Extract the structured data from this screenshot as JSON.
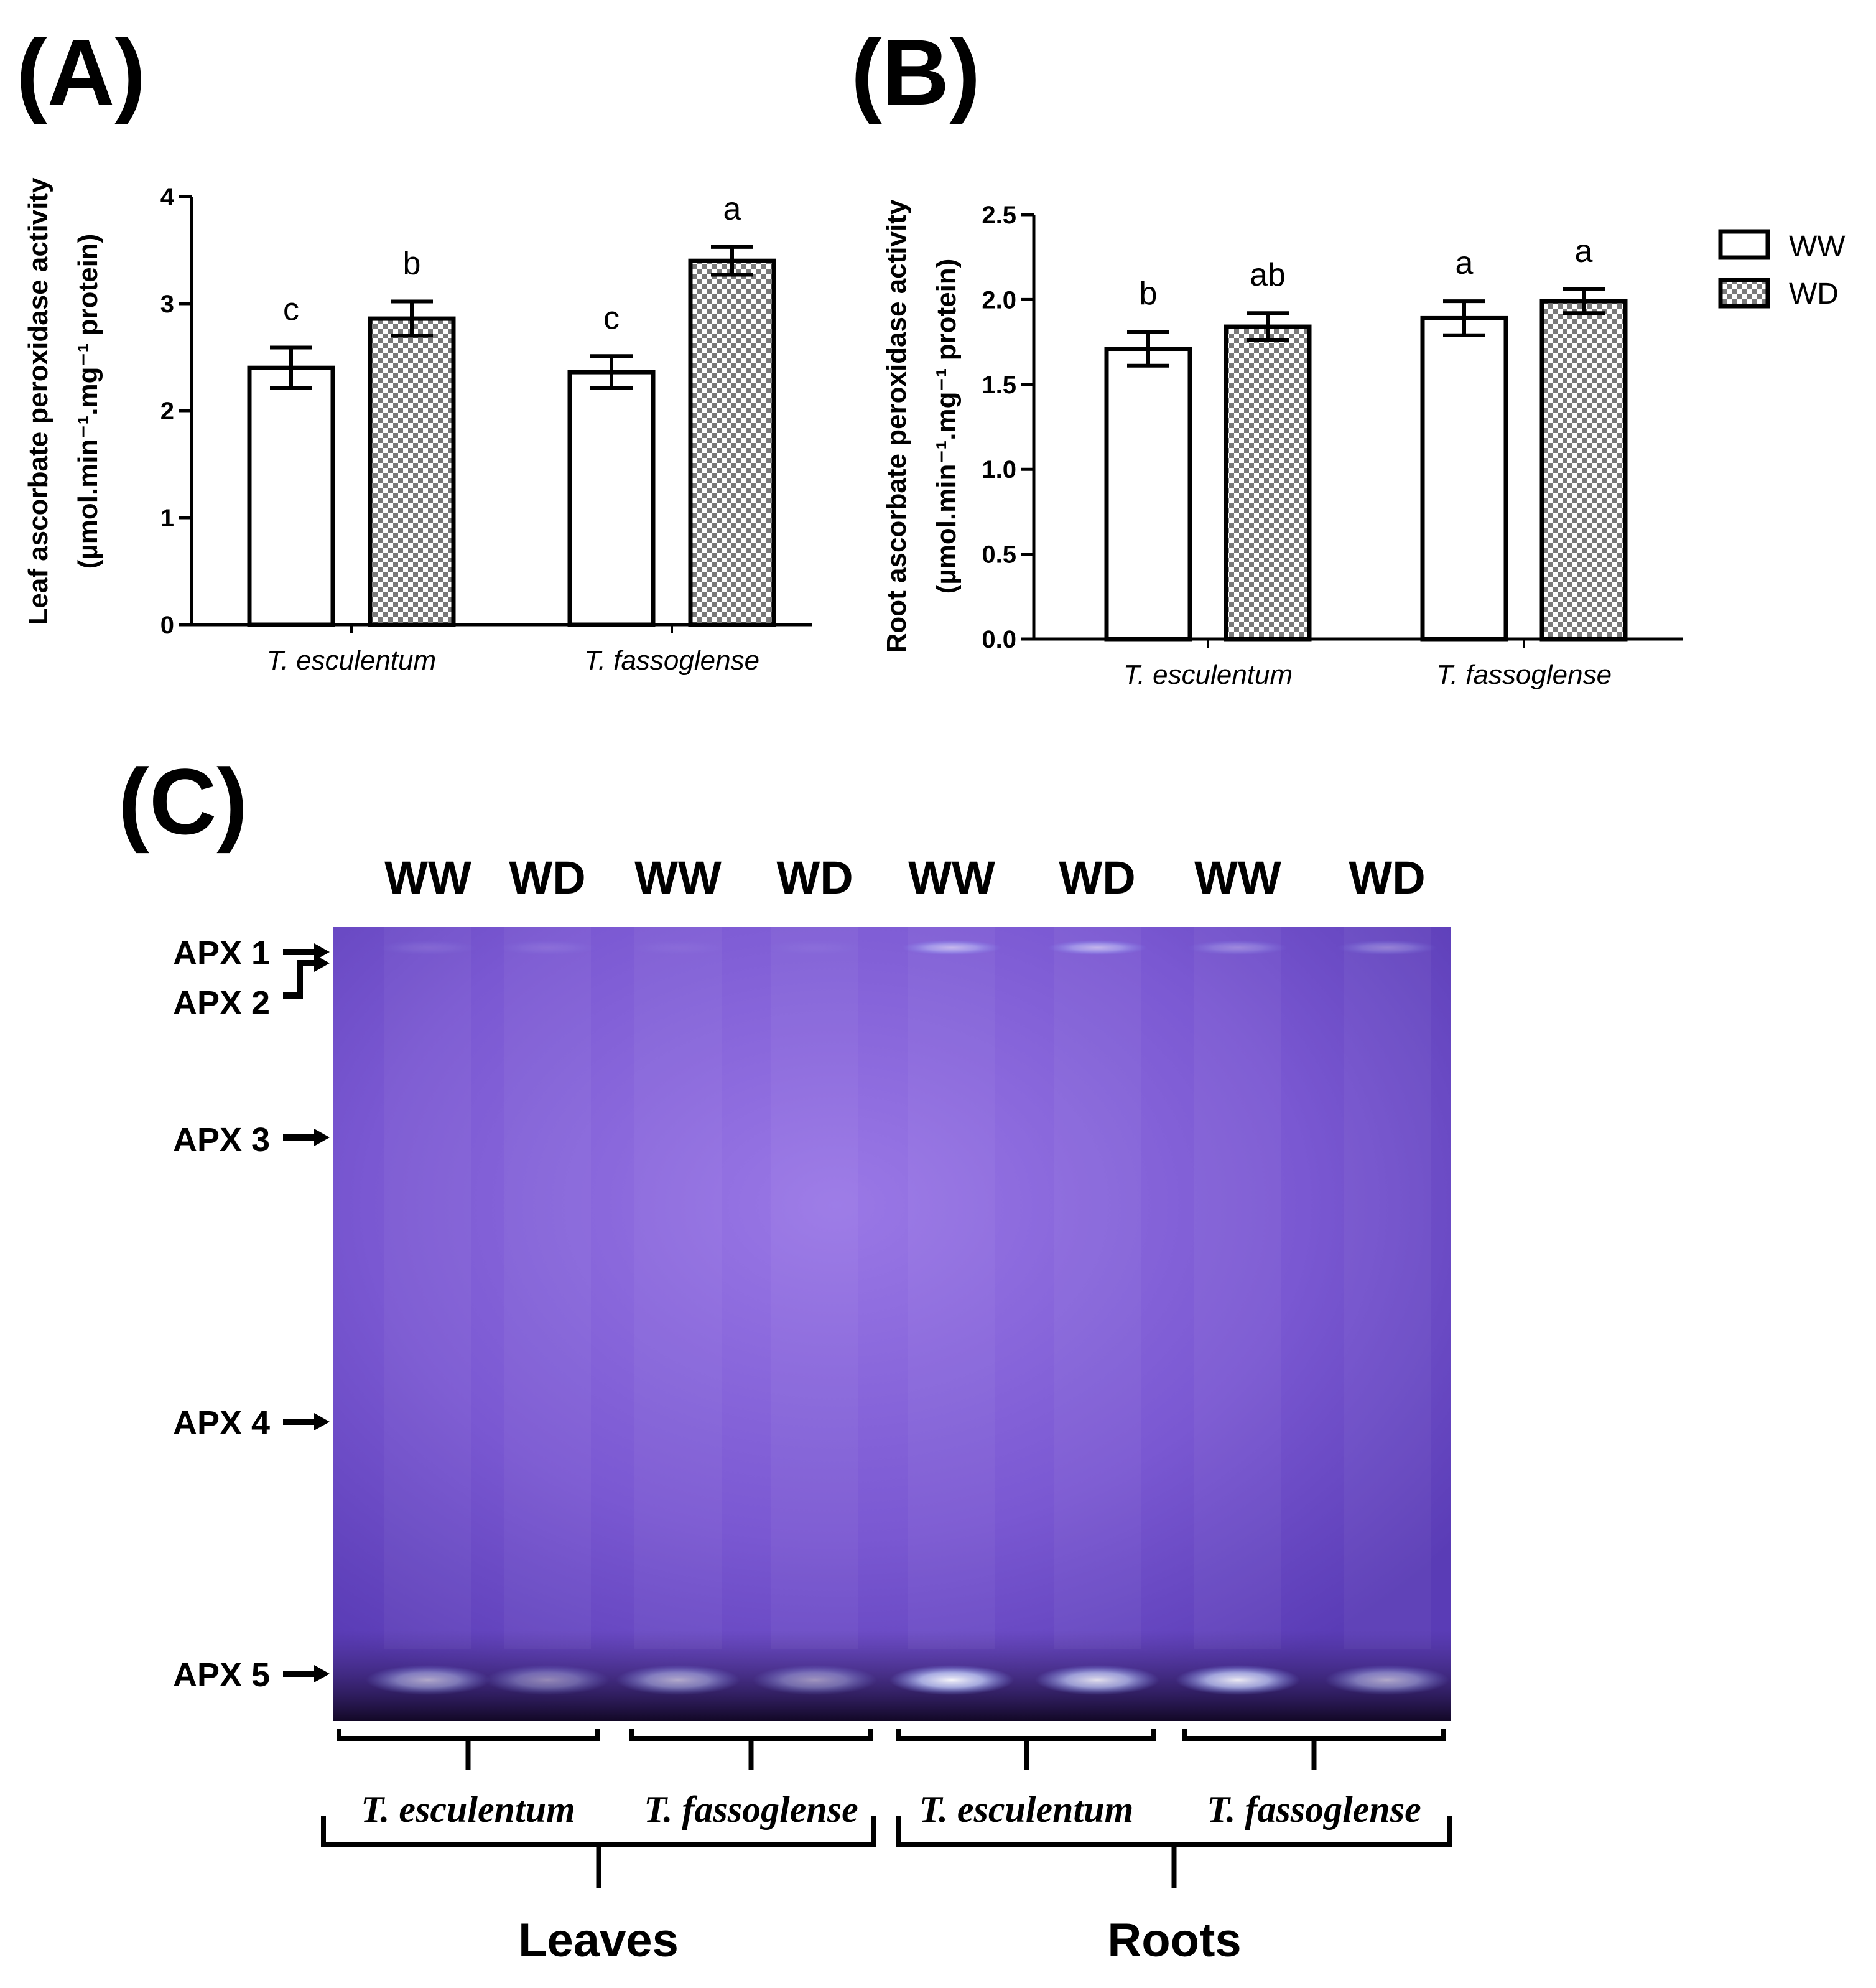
{
  "panels": {
    "a": {
      "label": "(A)"
    },
    "b": {
      "label": "(B)"
    },
    "c": {
      "label": "(C)"
    }
  },
  "legend": [
    {
      "label": "WW",
      "pattern": "open"
    },
    {
      "label": "WD",
      "pattern": "checker"
    }
  ],
  "colors": {
    "bar_fill_ww": "#ffffff",
    "bar_stroke": "#000000",
    "checker_dark": "#808080",
    "gel_bg": "#6a48c8",
    "gel_band": "#e8ecff"
  },
  "chart_data": [
    {
      "type": "bar",
      "panel": "(A)",
      "ylabel_line1": "Leaf ascorbate peroxidase activity",
      "ylabel_line2": "(µmol.min⁻¹.mg⁻¹ protein)",
      "categories": [
        "T. esculentum",
        "T. fassoglense"
      ],
      "ylim": [
        0,
        4
      ],
      "yticks": [
        "0",
        "1",
        "2",
        "3",
        "4"
      ],
      "ytick_values": [
        0,
        1,
        2,
        3,
        4
      ],
      "series": [
        {
          "name": "WW",
          "values": [
            2.4,
            2.36
          ],
          "errors": [
            0.19,
            0.15
          ],
          "letters": [
            "c",
            "c"
          ]
        },
        {
          "name": "WD",
          "values": [
            2.86,
            3.4
          ],
          "errors": [
            0.16,
            0.13
          ],
          "letters": [
            "b",
            "a"
          ]
        }
      ]
    },
    {
      "type": "bar",
      "panel": "(B)",
      "ylabel_line1": "Root ascorbate peroxidase activity",
      "ylabel_line2": "(µmol.min⁻¹.mg⁻¹ protein)",
      "categories": [
        "T. esculentum",
        "T. fassoglense"
      ],
      "ylim": [
        0,
        2.5
      ],
      "yticks": [
        "0.0",
        "0.5",
        "1.0",
        "1.5",
        "2.0",
        "2.5"
      ],
      "ytick_values": [
        0,
        0.5,
        1.0,
        1.5,
        2.0,
        2.5
      ],
      "series": [
        {
          "name": "WW",
          "values": [
            1.71,
            1.89
          ],
          "errors": [
            0.1,
            0.1
          ],
          "letters": [
            "b",
            "a"
          ]
        },
        {
          "name": "WD",
          "values": [
            1.84,
            1.99
          ],
          "errors": [
            0.08,
            0.07
          ],
          "letters": [
            "ab",
            "a"
          ]
        }
      ]
    }
  ],
  "gel": {
    "lanes": [
      "WW",
      "WD",
      "WW",
      "WD",
      "WW",
      "WD",
      "WW",
      "WD"
    ],
    "bands": [
      "APX 1",
      "APX 2",
      "APX 3",
      "APX 4",
      "APX 5"
    ],
    "apx5_intensity": [
      0.6,
      0.45,
      0.6,
      0.5,
      0.95,
      0.85,
      0.9,
      0.6
    ],
    "apx1_intensity": [
      0.1,
      0.1,
      0.05,
      0.05,
      0.55,
      0.55,
      0.3,
      0.3
    ],
    "groups": [
      "T. esculentum",
      "T. fassoglense",
      "T. esculentum",
      "T. fassoglense"
    ],
    "tissues": [
      "Leaves",
      "Roots"
    ]
  }
}
